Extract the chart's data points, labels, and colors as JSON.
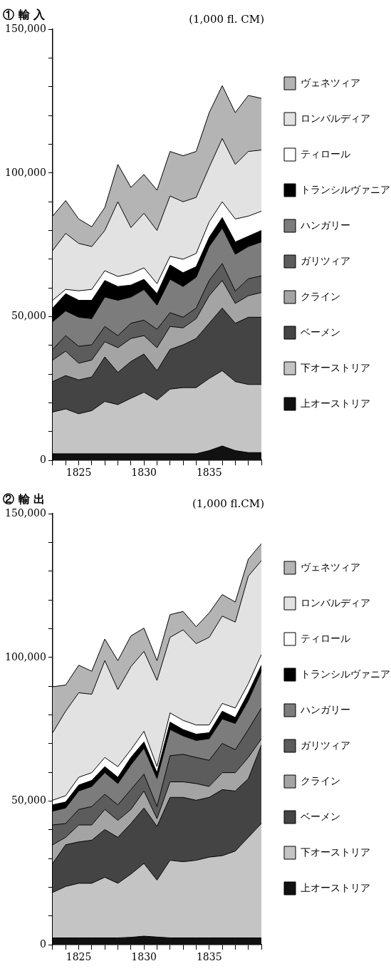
{
  "chart_data": [
    {
      "type": "area",
      "title": "① 輸 入",
      "annotations": [
        "(1,000 fl. CM)"
      ],
      "stacked": true,
      "legend": "right",
      "grid": false,
      "marker": "none",
      "x": [
        1823,
        1824,
        1825,
        1826,
        1827,
        1828,
        1829,
        1830,
        1831,
        1832,
        1833,
        1834,
        1835,
        1836,
        1837,
        1838,
        1839
      ],
      "xlim": [
        1823,
        1839
      ],
      "xticks": [
        {
          "value": 1823,
          "label": null
        },
        {
          "value": 1824,
          "label": null
        },
        1825,
        {
          "value": 1826,
          "label": null
        },
        {
          "value": 1827,
          "label": null
        },
        {
          "value": 1828,
          "label": null
        },
        {
          "value": 1829,
          "label": null
        },
        1830,
        {
          "value": 1831,
          "label": null
        },
        {
          "value": 1832,
          "label": null
        },
        {
          "value": 1833,
          "label": null
        },
        {
          "value": 1834,
          "label": null
        },
        1835,
        {
          "value": 1836,
          "label": null
        },
        {
          "value": 1837,
          "label": null
        },
        {
          "value": 1838,
          "label": null
        },
        {
          "value": 1839,
          "label": null
        }
      ],
      "ylim": [
        0,
        150000
      ],
      "yticks": [
        {
          "value": 0,
          "label": "0"
        },
        {
          "value": 10000,
          "label": null
        },
        {
          "value": 20000,
          "label": null
        },
        {
          "value": 30000,
          "label": null
        },
        {
          "value": 40000,
          "label": null
        },
        {
          "value": 50000,
          "label": "50,000"
        },
        {
          "value": 60000,
          "label": null
        },
        {
          "value": 70000,
          "label": null
        },
        {
          "value": 80000,
          "label": null
        },
        {
          "value": 90000,
          "label": null
        },
        {
          "value": 100000,
          "label": "100,000"
        },
        {
          "value": 110000,
          "label": null
        },
        {
          "value": 120000,
          "label": null
        },
        {
          "value": 130000,
          "label": null
        },
        {
          "value": 140000,
          "label": null
        },
        {
          "value": 150000,
          "label": "150,000"
        }
      ],
      "series": [
        {
          "name": "上オーストリア",
          "color": "#111111",
          "values": [
            2300,
            2300,
            2300,
            2300,
            2300,
            2300,
            2300,
            2300,
            2300,
            2300,
            2300,
            2300,
            3400,
            5000,
            3400,
            2700,
            2700
          ]
        },
        {
          "name": "下オーストリア",
          "color": "#c4c4c4",
          "values": [
            14500,
            15600,
            13900,
            15000,
            18200,
            17100,
            19300,
            21400,
            18700,
            22500,
            23000,
            23000,
            25100,
            26200,
            24000,
            23700,
            23700
          ]
        },
        {
          "name": "ベーメン",
          "color": "#444444",
          "values": [
            10600,
            11600,
            11800,
            11700,
            15500,
            11200,
            12800,
            13300,
            10200,
            13800,
            14900,
            17100,
            19200,
            21800,
            20300,
            23400,
            23400
          ]
        },
        {
          "name": "クライン",
          "color": "#a4a4a4",
          "values": [
            7500,
            8500,
            5800,
            5900,
            5300,
            8600,
            8000,
            6400,
            8000,
            8000,
            5900,
            6900,
            9600,
            9600,
            6900,
            7500,
            8600
          ]
        },
        {
          "name": "ガリツィア",
          "color": "#5c5c5c",
          "values": [
            3700,
            5400,
            5900,
            5300,
            5300,
            4200,
            5300,
            5400,
            6400,
            4800,
            3700,
            3700,
            5300,
            5900,
            4300,
            5900,
            5800
          ]
        },
        {
          "name": "ハンガリー",
          "color": "#7c7c7c",
          "values": [
            9600,
            8600,
            10100,
            9100,
            10200,
            12300,
            9100,
            10600,
            8400,
            11600,
            10700,
            10700,
            11800,
            12300,
            12800,
            11200,
            11800
          ]
        },
        {
          "name": "トランシルヴァニア",
          "color": "#000000",
          "values": [
            4800,
            6000,
            5900,
            6400,
            5800,
            4800,
            4200,
            3600,
            4000,
            5000,
            4800,
            3700,
            3200,
            3700,
            4300,
            3600,
            4000
          ]
        },
        {
          "name": "ティロール",
          "color": "#ffffff",
          "values": [
            2700,
            1500,
            3300,
            3800,
            3400,
            3500,
            4000,
            4000,
            3500,
            3000,
            4700,
            4600,
            5400,
            5500,
            8000,
            7000,
            6700
          ]
        },
        {
          "name": "ロンバルディア",
          "color": "#e2e2e2",
          "values": [
            17300,
            19500,
            16500,
            14900,
            14000,
            26000,
            16000,
            19000,
            18500,
            21000,
            20000,
            19500,
            19000,
            22000,
            19000,
            22500,
            21300
          ]
        },
        {
          "name": "ヴェネツィア",
          "color": "#b4b4b4",
          "values": [
            12000,
            11400,
            8500,
            6900,
            8000,
            13000,
            14000,
            13500,
            14000,
            15500,
            16000,
            16000,
            19000,
            18400,
            18000,
            19500,
            18000
          ]
        }
      ]
    },
    {
      "type": "area",
      "title": "② 輸 出",
      "annotations": [
        "(1,000 fl.CM)"
      ],
      "stacked": true,
      "legend": "right",
      "grid": false,
      "marker": "none",
      "x": [
        1823,
        1824,
        1825,
        1826,
        1827,
        1828,
        1829,
        1830,
        1831,
        1832,
        1833,
        1834,
        1835,
        1836,
        1837,
        1838,
        1839
      ],
      "xlim": [
        1823,
        1839
      ],
      "xticks": [
        {
          "value": 1823,
          "label": null
        },
        {
          "value": 1824,
          "label": null
        },
        1825,
        {
          "value": 1826,
          "label": null
        },
        {
          "value": 1827,
          "label": null
        },
        {
          "value": 1828,
          "label": null
        },
        {
          "value": 1829,
          "label": null
        },
        1830,
        {
          "value": 1831,
          "label": null
        },
        {
          "value": 1832,
          "label": null
        },
        {
          "value": 1833,
          "label": null
        },
        {
          "value": 1834,
          "label": null
        },
        1835,
        {
          "value": 1836,
          "label": null
        },
        {
          "value": 1837,
          "label": null
        },
        {
          "value": 1838,
          "label": null
        },
        {
          "value": 1839,
          "label": null
        }
      ],
      "ylim": [
        0,
        150000
      ],
      "yticks": [
        {
          "value": 0,
          "label": "0"
        },
        {
          "value": 10000,
          "label": null
        },
        {
          "value": 20000,
          "label": null
        },
        {
          "value": 30000,
          "label": null
        },
        {
          "value": 40000,
          "label": null
        },
        {
          "value": 50000,
          "label": "50,000"
        },
        {
          "value": 60000,
          "label": null
        },
        {
          "value": 70000,
          "label": null
        },
        {
          "value": 80000,
          "label": null
        },
        {
          "value": 90000,
          "label": null
        },
        {
          "value": 100000,
          "label": "100,000"
        },
        {
          "value": 110000,
          "label": null
        },
        {
          "value": 120000,
          "label": null
        },
        {
          "value": 130000,
          "label": null
        },
        {
          "value": 140000,
          "label": null
        },
        {
          "value": 150000,
          "label": "150,000"
        }
      ],
      "series": [
        {
          "name": "上オーストリア",
          "color": "#111111",
          "values": [
            2400,
            2400,
            2400,
            2400,
            2400,
            2400,
            2600,
            3000,
            2700,
            2400,
            2400,
            2400,
            2400,
            2400,
            2400,
            2400,
            2400
          ]
        },
        {
          "name": "下オーストリア",
          "color": "#c4c4c4",
          "values": [
            15800,
            17900,
            19000,
            19000,
            21100,
            19000,
            22000,
            25300,
            19800,
            27000,
            26500,
            27000,
            28100,
            28600,
            30200,
            35000,
            39800
          ]
        },
        {
          "name": "ベーメン",
          "color": "#444444",
          "values": [
            10100,
            14500,
            14400,
            15000,
            16600,
            16000,
            17600,
            19300,
            18700,
            21900,
            22400,
            20900,
            20800,
            23000,
            20900,
            20400,
            27300
          ]
        },
        {
          "name": "クライン",
          "color": "#a4a4a4",
          "values": [
            6500,
            2600,
            5900,
            5300,
            7000,
            5900,
            4900,
            5900,
            2700,
            5400,
            5400,
            5800,
            3800,
            5900,
            6400,
            7400,
            2200
          ]
        },
        {
          "name": "ガリツィア",
          "color": "#5c5c5c",
          "values": [
            6900,
            4800,
            5400,
            6400,
            5300,
            5400,
            6900,
            5900,
            4200,
            9100,
            9600,
            9100,
            9100,
            10200,
            8000,
            9700,
            10700
          ]
        },
        {
          "name": "ハンガリー",
          "color": "#7c7c7c",
          "values": [
            4800,
            5400,
            6400,
            7000,
            7500,
            7400,
            8600,
            9000,
            9700,
            9100,
            6400,
            5900,
            7500,
            8500,
            9100,
            10100,
            12800
          ]
        },
        {
          "name": "トランシルヴァニア",
          "color": "#000000",
          "values": [
            2200,
            2100,
            2100,
            2100,
            2100,
            2200,
            2600,
            2200,
            2100,
            2600,
            2200,
            2200,
            2100,
            2700,
            2100,
            2700,
            2100
          ]
        },
        {
          "name": "ティロール",
          "color": "#ffffff",
          "values": [
            1600,
            2200,
            2700,
            2700,
            3200,
            3700,
            2700,
            3700,
            2100,
            3200,
            3200,
            3200,
            2700,
            2700,
            3300,
            3200,
            3700
          ]
        },
        {
          "name": "ロンバルディア",
          "color": "#e2e2e2",
          "values": [
            23500,
            29400,
            29400,
            27300,
            33700,
            26800,
            28900,
            27800,
            30000,
            26300,
            31500,
            28300,
            30500,
            30400,
            29900,
            37400,
            32700
          ]
        },
        {
          "name": "ヴェネツィア",
          "color": "#b4b4b4",
          "values": [
            16000,
            9100,
            9600,
            8000,
            7500,
            10100,
            10700,
            8100,
            6900,
            7900,
            6400,
            5900,
            8500,
            7500,
            7000,
            5900,
            5900
          ]
        }
      ]
    }
  ]
}
